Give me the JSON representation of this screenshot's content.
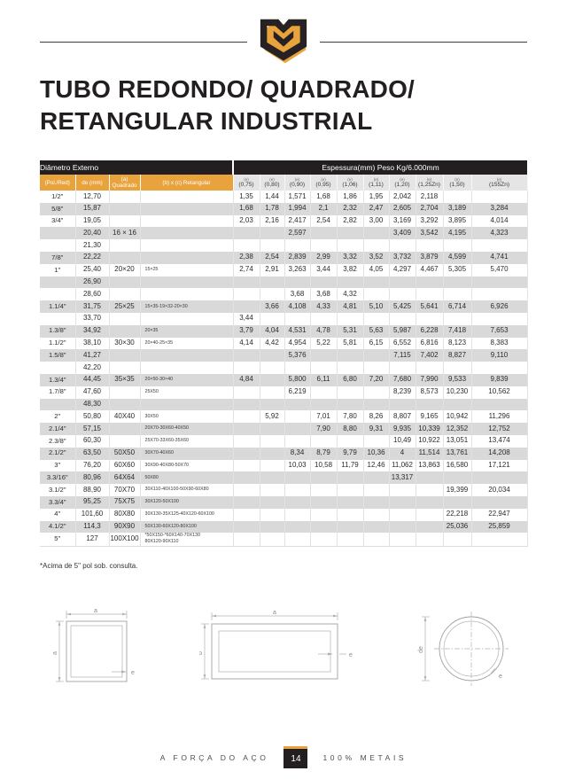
{
  "header": {
    "title_line1": "TUBO REDONDO/ QUADRADO/",
    "title_line2": "RETANGULAR INDUSTRIAL",
    "logo": "gold-shield-m-logo"
  },
  "colors": {
    "accent": "#E8A33C",
    "dark": "#231F20",
    "row_alt": "#D9D9D9"
  },
  "table": {
    "group_headers": {
      "left": "Diâmetro Externo",
      "right": "Espessura(mm) Peso Kg/6.000mm"
    },
    "dim_columns": [
      "(Pol./Red)",
      "de (mm)",
      "(a) Quadrado",
      "(b) x (c) Retangular"
    ],
    "thickness_prefix": "(e)",
    "thickness_columns": [
      "(0,75)",
      "(0,80)",
      "(0,90)",
      "(0,95)",
      "(1,06)",
      "(1,11)",
      "(1,20)",
      "(1,25Zn)",
      "(1,50)",
      "(155Zn)"
    ],
    "rows": [
      [
        "1/2\"",
        "12,70",
        "",
        "",
        "1,35",
        "1,44",
        "1,571",
        "1,68",
        "1,86",
        "1,95",
        "2,042",
        "2,118",
        "",
        ""
      ],
      [
        "5/8\"",
        "15,87",
        "",
        "",
        "1,68",
        "1,78",
        "1,994",
        "2,1",
        "2,32",
        "2,47",
        "2,605",
        "2,704",
        "3,189",
        "3,284"
      ],
      [
        "3/4\"",
        "19,05",
        "",
        "",
        "2,03",
        "2,16",
        "2,417",
        "2,54",
        "2,82",
        "3,00",
        "3,169",
        "3,292",
        "3,895",
        "4,014"
      ],
      [
        "",
        "20,40",
        "16 × 16",
        "",
        "",
        "",
        "2,597",
        "",
        "",
        "",
        "3,409",
        "3,542",
        "4,195",
        "4,323"
      ],
      [
        "",
        "21,30",
        "",
        "",
        "",
        "",
        "",
        "",
        "",
        "",
        "",
        "",
        "",
        ""
      ],
      [
        "7/8\"",
        "22,22",
        "",
        "",
        "2,38",
        "2,54",
        "2,839",
        "2,99",
        "3,32",
        "3,52",
        "3,732",
        "3,879",
        "4,599",
        "4,741"
      ],
      [
        "1\"",
        "25,40",
        "20×20",
        "15×25",
        "2,74",
        "2,91",
        "3,263",
        "3,44",
        "3,82",
        "4,05",
        "4,297",
        "4,467",
        "5,305",
        "5,470"
      ],
      [
        "",
        "26,90",
        "",
        "",
        "",
        "",
        "",
        "",
        "",
        "",
        "",
        "",
        "",
        ""
      ],
      [
        "",
        "28,60",
        "",
        "",
        "",
        "",
        "3,68",
        "3,68",
        "4,32",
        "",
        "",
        "",
        "",
        ""
      ],
      [
        "1.1/4\"",
        "31,75",
        "25×25",
        "15×35-19×32-20×30",
        "",
        "3,66",
        "4,108",
        "4,33",
        "4,81",
        "5,10",
        "5,425",
        "5,641",
        "6,714",
        "6,926"
      ],
      [
        "",
        "33,70",
        "",
        "",
        "3,44",
        "",
        "",
        "",
        "",
        "",
        "",
        "",
        "",
        ""
      ],
      [
        "1.3/8\"",
        "34,92",
        "",
        "20×35",
        "3,79",
        "4,04",
        "4,531",
        "4,78",
        "5,31",
        "5,63",
        "5,987",
        "6,228",
        "7,418",
        "7,653"
      ],
      [
        "1.1/2\"",
        "38,10",
        "30×30",
        "20×40-25×35",
        "4,14",
        "4,42",
        "4,954",
        "5,22",
        "5,81",
        "6,15",
        "6,552",
        "6,816",
        "8,123",
        "8,383"
      ],
      [
        "1.5/8\"",
        "41,27",
        "",
        "",
        "",
        "",
        "5,376",
        "",
        "",
        "",
        "7,115",
        "7,402",
        "8,827",
        "9,110"
      ],
      [
        "",
        "42,20",
        "",
        "",
        "",
        "",
        "",
        "",
        "",
        "",
        "",
        "",
        "",
        ""
      ],
      [
        "1.3/4\"",
        "44,45",
        "35×35",
        "20×50-30×40",
        "4,84",
        "",
        "5,800",
        "6,11",
        "6,80",
        "7,20",
        "7,680",
        "7,990",
        "9,533",
        "9,839"
      ],
      [
        "1.7/8\"",
        "47,60",
        "",
        "25X50",
        "",
        "",
        "6,219",
        "",
        "",
        "",
        "8,239",
        "8,573",
        "10,230",
        "10,562"
      ],
      [
        "",
        "48,30",
        "",
        "",
        "",
        "",
        "",
        "",
        "",
        "",
        "",
        "",
        "",
        ""
      ],
      [
        "2\"",
        "50,80",
        "40X40",
        "30X50",
        "",
        "5,92",
        "",
        "7,01",
        "7,80",
        "8,26",
        "8,807",
        "9,165",
        "10,942",
        "11,296"
      ],
      [
        "2.1/4\"",
        "57,15",
        "",
        "20X70-30X60-40X50",
        "",
        "",
        "",
        "7,90",
        "8,80",
        "9,31",
        "9,935",
        "10,339",
        "12,352",
        "12,752"
      ],
      [
        "2.3/8\"",
        "60,30",
        "",
        "25X70-33X60-35X60",
        "",
        "",
        "",
        "",
        "",
        "",
        "10,49",
        "10,922",
        "13,051",
        "13,474"
      ],
      [
        "2.1/2\"",
        "63,50",
        "50X50",
        "30X70-40X60",
        "",
        "",
        "8,34",
        "8,79",
        "9,79",
        "10,36",
        "4",
        "11,514",
        "13,761",
        "14,208"
      ],
      [
        "3\"",
        "76,20",
        "60X60",
        "30X90-40X80-50X70",
        "",
        "",
        "10,03",
        "10,58",
        "11,79",
        "12,46",
        "11,062",
        "13,863",
        "16,580",
        "17,121"
      ],
      [
        "3.3/16\"",
        "80,96",
        "64X64",
        "50X80",
        "",
        "",
        "",
        "",
        "",
        "",
        "13,317",
        "",
        "",
        ""
      ],
      [
        "3.1/2\"",
        "88,90",
        "70X70",
        "30X110-40X100-50X90-60X80",
        "",
        "",
        "",
        "",
        "",
        "",
        "",
        "",
        "19,399",
        "20,034"
      ],
      [
        "3.3/4\"",
        "95,25",
        "75X75",
        "30X120-50X100",
        "",
        "",
        "",
        "",
        "",
        "",
        "",
        "",
        "",
        ""
      ],
      [
        "4\"",
        "101,60",
        "80X80",
        "30X130-35X125-40X120-60X100",
        "",
        "",
        "",
        "",
        "",
        "",
        "",
        "",
        "22,218",
        "22,947"
      ],
      [
        "4.1/2\"",
        "114,3",
        "90X90",
        "50X130-60X120-80X100",
        "",
        "",
        "",
        "",
        "",
        "",
        "",
        "",
        "25,036",
        "25,859"
      ],
      [
        "5\"",
        "127",
        "100X100",
        "*50X150-*60X140-70X130\n80X120-90X110",
        "",
        "",
        "",
        "",
        "",
        "",
        "",
        "",
        "",
        ""
      ]
    ]
  },
  "footnote": "*Acima de 5\" pol sob. consulta.",
  "diagrams": {
    "square": {
      "width_label": "a",
      "height_label": "a",
      "thickness_label": "e"
    },
    "rectangle": {
      "width_label": "a",
      "height_label": "b",
      "thickness_label": "e"
    },
    "round": {
      "diameter_label": "de",
      "thickness_label": "e"
    }
  },
  "footer": {
    "tagline_left": "A FORÇA DO AÇO",
    "page_number": "14",
    "tagline_right": "100% METAIS"
  }
}
